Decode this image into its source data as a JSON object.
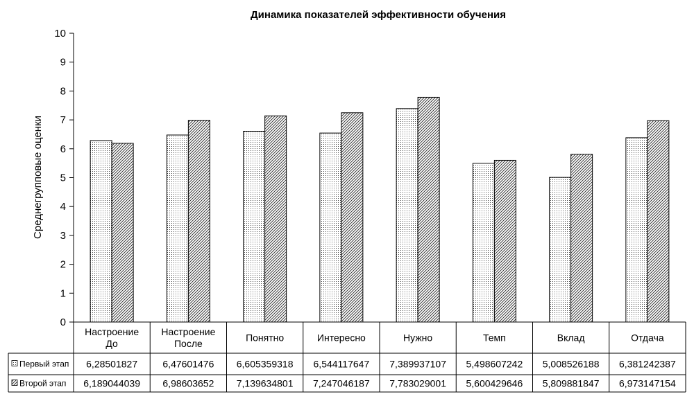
{
  "chart_data": {
    "type": "bar",
    "title": "Динамика показателей эффективности обучения",
    "ylabel": "Среднегрупповые оценки",
    "xlabel": "",
    "ylim": [
      0,
      10
    ],
    "yticks": [
      "0",
      "1",
      "2",
      "3",
      "4",
      "5",
      "6",
      "7",
      "8",
      "9",
      "10"
    ],
    "categories": [
      [
        "Настроение",
        "До"
      ],
      [
        "Настроение",
        "После"
      ],
      [
        "Понятно"
      ],
      [
        "Интересно"
      ],
      [
        "Нужно"
      ],
      [
        "Темп"
      ],
      [
        "Вклад"
      ],
      [
        "Отдача"
      ]
    ],
    "series": [
      {
        "name": "Первый этап",
        "pattern": "dots",
        "values": [
          6.28501827,
          6.47601476,
          6.605359318,
          6.544117647,
          7.389937107,
          5.498607242,
          5.008526188,
          6.381242387
        ],
        "labels": [
          "6,28501827",
          "6,47601476",
          "6,605359318",
          "6,544117647",
          "7,389937107",
          "5,498607242",
          "5,008526188",
          "6,381242387"
        ]
      },
      {
        "name": "Второй этап",
        "pattern": "hatch",
        "values": [
          6.189044039,
          6.98603652,
          7.139634801,
          7.247046187,
          7.783029001,
          5.600429646,
          5.809881847,
          6.973147154
        ],
        "labels": [
          "6,189044039",
          "6,98603652",
          "7,139634801",
          "7,247046187",
          "7,783029001",
          "5,600429646",
          "5,809881847",
          "6,973147154"
        ]
      }
    ],
    "grid": false,
    "legend": "data-table"
  }
}
